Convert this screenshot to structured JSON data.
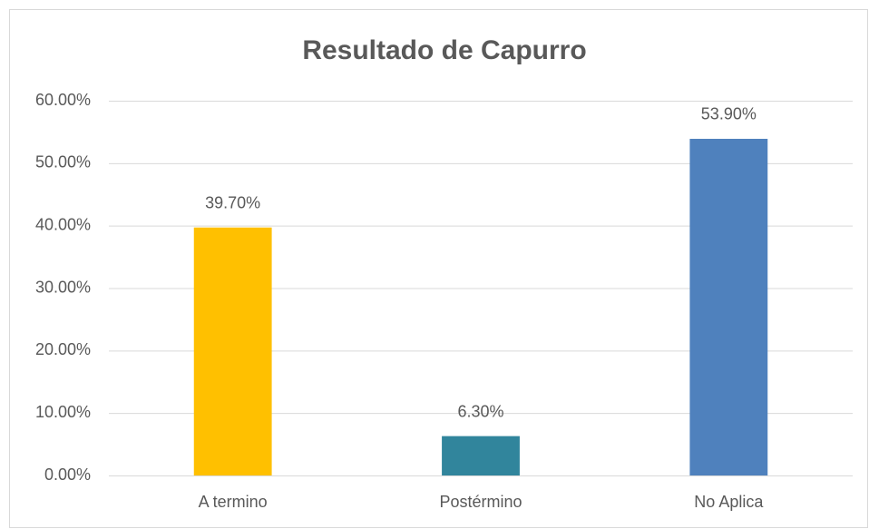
{
  "chart_data": {
    "type": "bar",
    "title": "Resultado de Capurro",
    "categories": [
      "A termino",
      "Postérmino",
      "No Aplica"
    ],
    "values": [
      39.7,
      6.3,
      53.9
    ],
    "value_labels": [
      "39.70%",
      "6.30%",
      "53.90%"
    ],
    "colors": [
      "#ffc000",
      "#31859c",
      "#4f81bd"
    ],
    "ylim": [
      0,
      60
    ],
    "yticks": [
      {
        "value": 0,
        "label": "0.00%"
      },
      {
        "value": 10,
        "label": "10.00%"
      },
      {
        "value": 20,
        "label": "20.00%"
      },
      {
        "value": 30,
        "label": "30.00%"
      },
      {
        "value": 40,
        "label": "40.00%"
      },
      {
        "value": 50,
        "label": "50.00%"
      },
      {
        "value": 60,
        "label": "60.00%"
      }
    ],
    "grid": true
  }
}
